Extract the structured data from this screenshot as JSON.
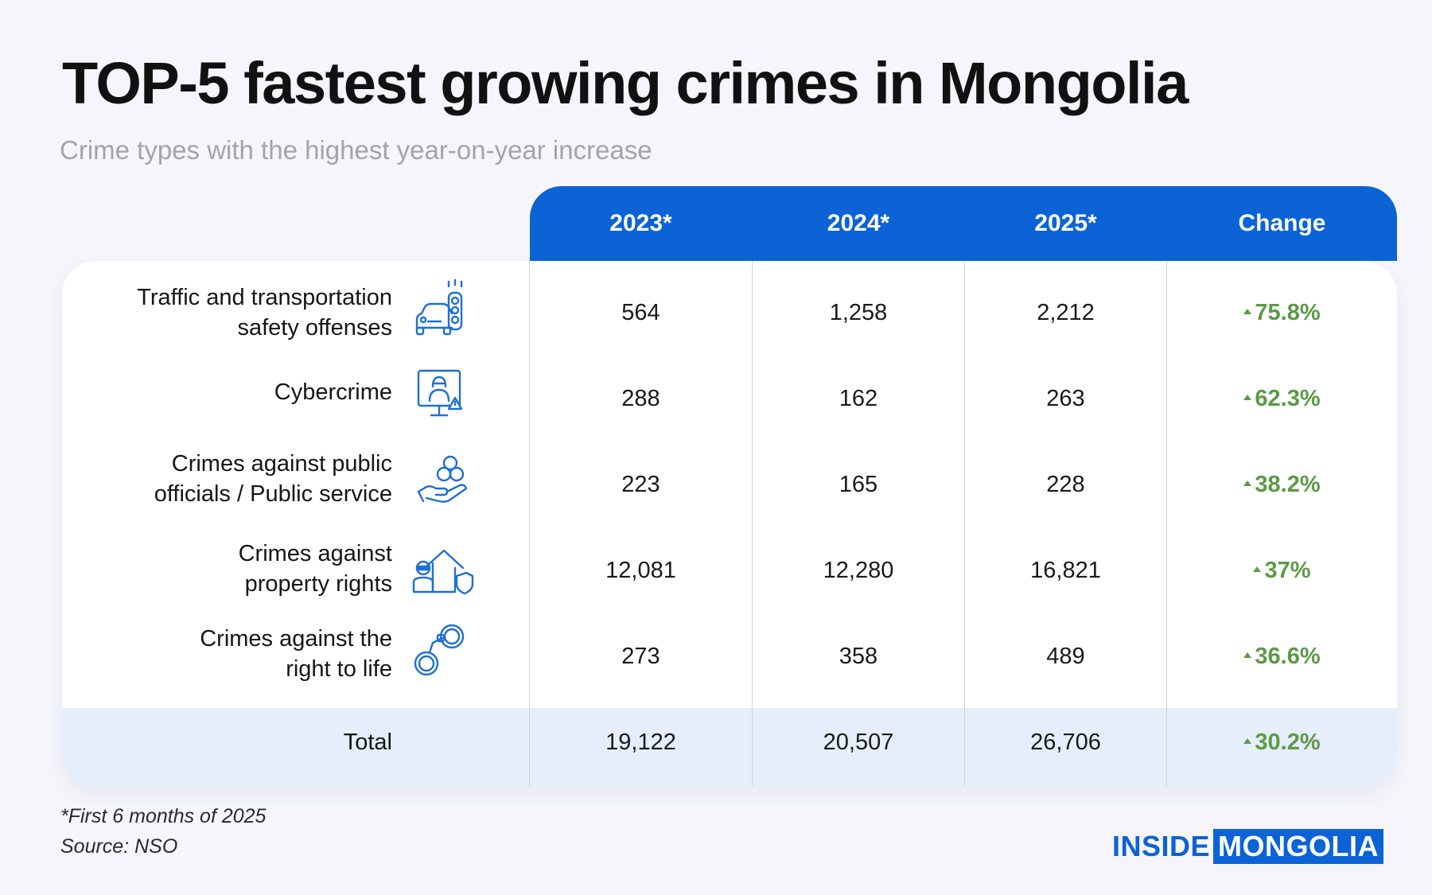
{
  "title": "TOP-5 fastest growing crimes in Mongolia",
  "subtitle": "Crime types with the highest year-on-year increase",
  "chart_data": {
    "type": "table",
    "columns": [
      "2023*",
      "2024*",
      "2025*",
      "Change"
    ],
    "rows": [
      {
        "label_lines": [
          "Traffic and transportation",
          "safety offenses"
        ],
        "icon": "traffic-light-car-icon",
        "values": [
          "564",
          "1,258",
          "2,212"
        ],
        "change": "75.8%"
      },
      {
        "label_lines": [
          "Cybercrime"
        ],
        "icon": "hacker-monitor-icon",
        "values": [
          "288",
          "162",
          "263"
        ],
        "change": "62.3%"
      },
      {
        "label_lines": [
          "Crimes against public",
          "officials / Public service"
        ],
        "icon": "hand-group-icon",
        "values": [
          "223",
          "165",
          "228"
        ],
        "change": "38.2%"
      },
      {
        "label_lines": [
          "Crimes against",
          "property rights"
        ],
        "icon": "house-thief-icon",
        "values": [
          "12,081",
          "12,280",
          "16,821"
        ],
        "change": "37%"
      },
      {
        "label_lines": [
          "Crimes against the",
          "right to life"
        ],
        "icon": "handcuffs-icon",
        "values": [
          "273",
          "358",
          "489"
        ],
        "change": "36.6%"
      }
    ],
    "total": {
      "label": "Total",
      "values": [
        "19,122",
        "20,507",
        "26,706"
      ],
      "change": "30.2%"
    }
  },
  "footnote": "*First 6 months of 2025",
  "source": "Source: NSO",
  "logo": {
    "part1": "INSIDE",
    "part2": "MONGOLIA"
  },
  "colors": {
    "accent": "#0b63d6",
    "positive": "#5c9a46",
    "total_band": "#e5eefa",
    "background": "#f5f5fb"
  }
}
